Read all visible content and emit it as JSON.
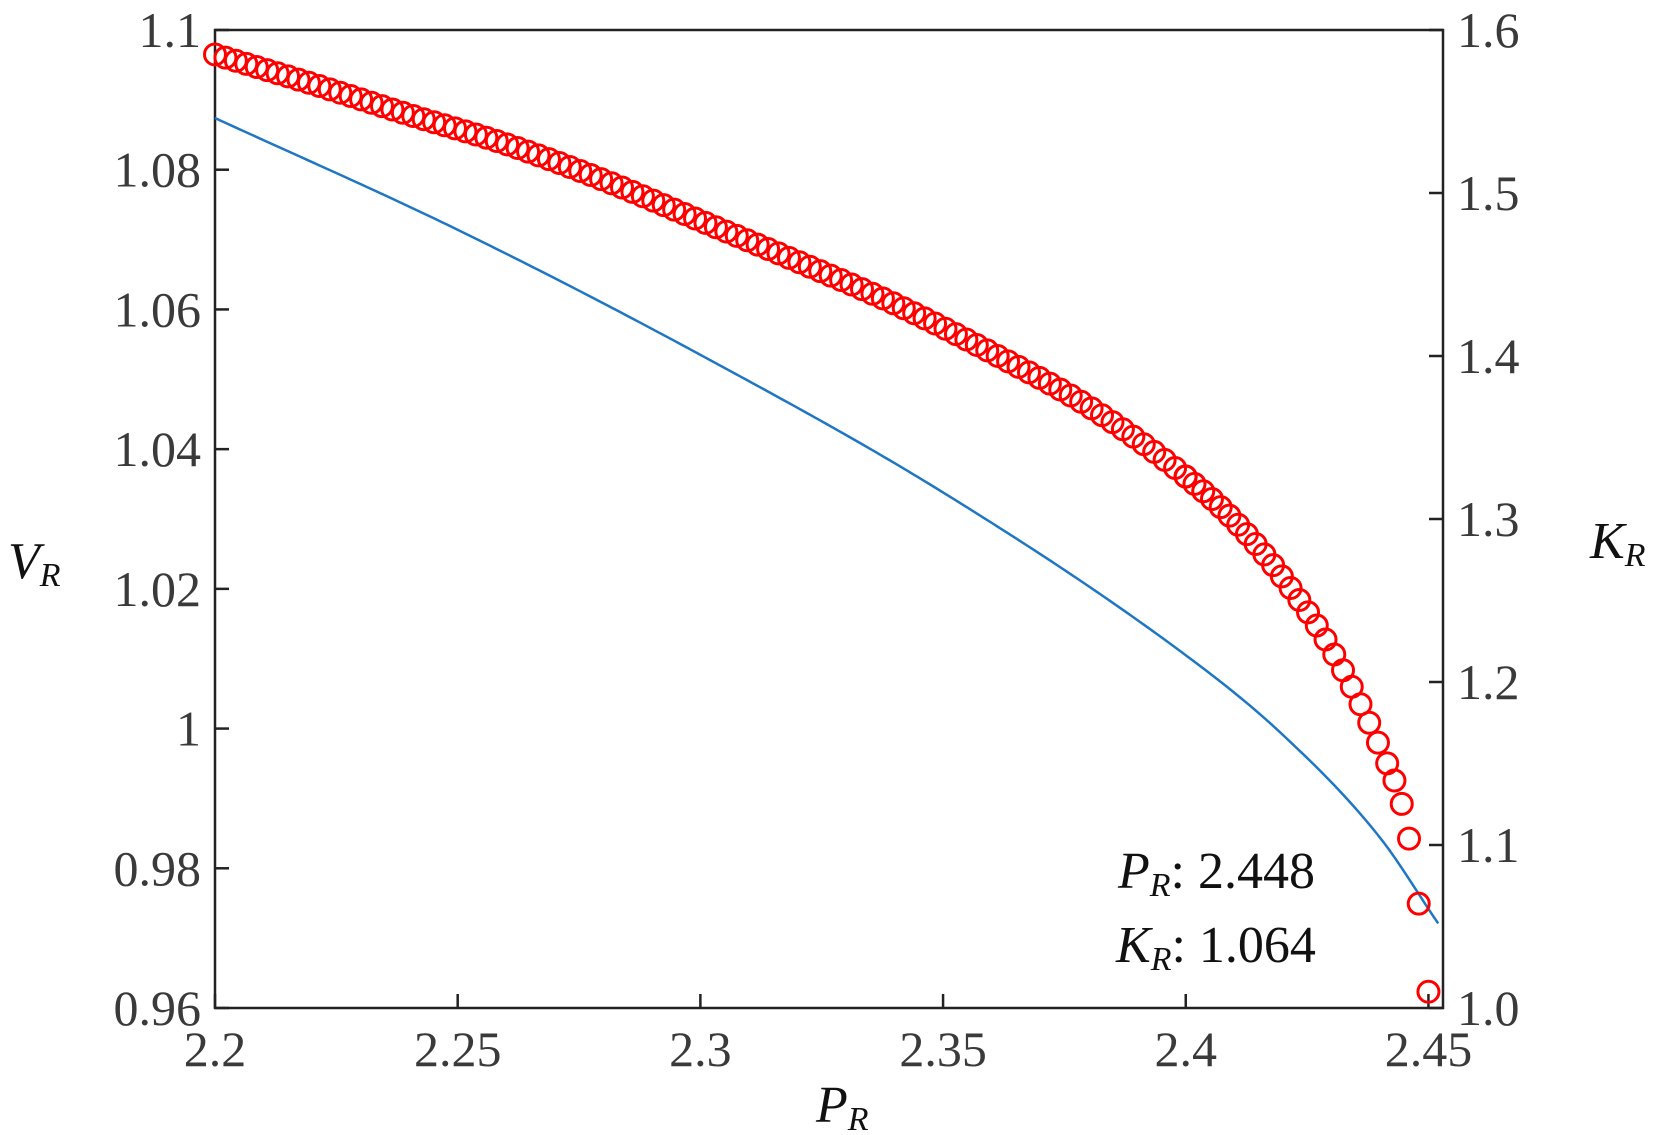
{
  "chart_data": {
    "type": "line+scatter",
    "x_axis": {
      "label": "P",
      "label_sub": "R",
      "range": [
        2.2,
        2.453
      ],
      "ticks": [
        2.2,
        2.25,
        2.3,
        2.35,
        2.4,
        2.45
      ],
      "tick_labels": [
        "2.2",
        "2.25",
        "2.3",
        "2.35",
        "2.4",
        "2.45"
      ]
    },
    "y_left": {
      "label": "V",
      "label_sub": "R",
      "range": [
        0.96,
        1.1
      ],
      "ticks": [
        0.96,
        0.98,
        1.0,
        1.02,
        1.04,
        1.06,
        1.08,
        1.1
      ],
      "tick_labels": [
        "0.96",
        "0.98",
        "1",
        "1.02",
        "1.04",
        "1.06",
        "1.08",
        "1.1"
      ]
    },
    "y_right": {
      "label": "K",
      "label_sub": "R",
      "range": [
        1.0,
        1.6
      ],
      "ticks": [
        1.0,
        1.1,
        1.2,
        1.3,
        1.4,
        1.5,
        1.6
      ],
      "tick_labels": [
        "1.0",
        "1.1",
        "1.2",
        "1.3",
        "1.4",
        "1.5",
        "1.6"
      ]
    },
    "series": [
      {
        "axis": "left",
        "style": "line",
        "color": "#1f77c4",
        "x": [
          2.2,
          2.25,
          2.3,
          2.35,
          2.4,
          2.42,
          2.44,
          2.452
        ],
        "y": [
          1.0874,
          1.0714,
          1.0535,
          1.0338,
          1.0105,
          0.9991,
          0.9844,
          0.9721
        ]
      },
      {
        "axis": "right",
        "style": "markers",
        "marker": "circle-open",
        "color": "#ff0000",
        "x": [
          2.2,
          2.22,
          2.24,
          2.26,
          2.28,
          2.3,
          2.32,
          2.34,
          2.36,
          2.38,
          2.4,
          2.41,
          2.42,
          2.43,
          2.44,
          2.445,
          2.448,
          2.45
        ],
        "y": [
          1.585,
          1.567,
          1.548,
          1.53,
          1.508,
          1.483,
          1.458,
          1.432,
          1.402,
          1.369,
          1.326,
          1.299,
          1.264,
          1.22,
          1.16,
          1.119,
          1.064,
          1.01
        ]
      }
    ],
    "annotation": {
      "line1_var": "P",
      "line1_sub": "R",
      "line1_value": ": 2.448",
      "line2_var": "K",
      "line2_sub": "R",
      "line2_value": ": 1.064"
    },
    "grid": false,
    "legend": "none"
  }
}
